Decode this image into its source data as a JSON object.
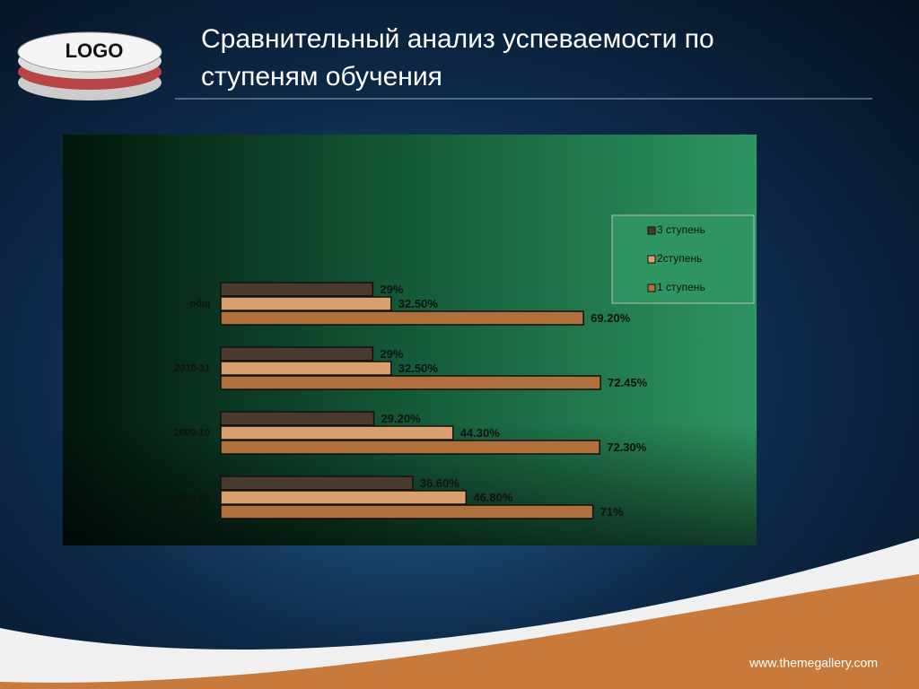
{
  "logo": "LOGO",
  "slide_title": [
    "Сравнительный анализ успеваемости по",
    "ступеням обучения"
  ],
  "footer": "www.themegallery.com",
  "chart_data": {
    "type": "hbar",
    "categories": [
      "общ",
      "2010-11",
      "2009-10",
      "2008-09"
    ],
    "series": [
      {
        "name": "3 ступень",
        "color": "#4a3a2c",
        "values": [
          29,
          29,
          29.2,
          36.6
        ],
        "value_labels": [
          "29%",
          "29%",
          "29.20%",
          "36.60%"
        ]
      },
      {
        "name": "2ступень",
        "color": "#d9a06b",
        "values": [
          32.5,
          32.5,
          44.3,
          46.8
        ],
        "value_labels": [
          "32.50%",
          "32.50%",
          "44.30%",
          "46.80%"
        ]
      },
      {
        "name": "1 ступень",
        "color": "#b0703c",
        "values": [
          69.2,
          72.45,
          72.3,
          71
        ],
        "value_labels": [
          "69.20%",
          "72.45%",
          "72.30%",
          "71%"
        ]
      }
    ],
    "xlim": [
      0,
      100
    ],
    "legend": "right"
  }
}
